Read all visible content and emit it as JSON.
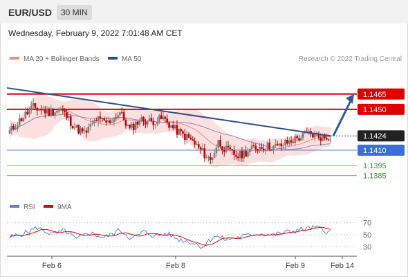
{
  "header": {
    "symbol": "EUR/USD",
    "timeframe": "30 MIN"
  },
  "date_line": "Wednesday, February 9, 2022 7:01:48 AM CET",
  "legend": [
    {
      "label": "MA 20 + Bollinger Bands",
      "color": "#f28b82"
    },
    {
      "label": "MA 50",
      "color": "#2c4e8a"
    }
  ],
  "credit": "Research © 2022 Trading Central",
  "rsi_legend": [
    {
      "label": "RSI",
      "color": "#5b7fd6"
    },
    {
      "label": "9MA",
      "color": "#e00000"
    }
  ],
  "colors": {
    "up": "#7d7d7d",
    "down": "#c00000",
    "resistance": "#e00000",
    "pivot": "#3a6fd8",
    "support": "#6ab86a",
    "trendline": "#2c4e8a",
    "band_fill": "#fbd3d3",
    "arrow": "#2c5aa0"
  },
  "chart_data": [
    {
      "type": "candlestick",
      "x_ticks": [
        "Feb 6",
        "Feb 8",
        "Feb 9",
        "Feb 14"
      ],
      "ylim": [
        1.1378,
        1.1492
      ],
      "levels": [
        {
          "value": 1.1465,
          "label": "1.1465",
          "kind": "resistance"
        },
        {
          "value": 1.145,
          "label": "1.1450",
          "kind": "resistance"
        },
        {
          "value": 1.1424,
          "label": "1.1424",
          "kind": "last_price"
        },
        {
          "value": 1.141,
          "label": "1.1410",
          "kind": "pivot"
        },
        {
          "value": 1.1395,
          "label": "1.1395",
          "kind": "support"
        },
        {
          "value": 1.1385,
          "label": "1.1385",
          "kind": "support"
        }
      ],
      "trendline": {
        "from": 1.1471,
        "to": 1.1424
      },
      "forecast_arrow": {
        "from": 1.1424,
        "to": 1.1465
      },
      "waypoints": [
        [
          0,
          1.1428
        ],
        [
          6,
          1.1441
        ],
        [
          12,
          1.1452
        ],
        [
          20,
          1.1447
        ],
        [
          26,
          1.145
        ],
        [
          33,
          1.1433
        ],
        [
          38,
          1.1426
        ],
        [
          44,
          1.144
        ],
        [
          50,
          1.1437
        ],
        [
          56,
          1.1447
        ],
        [
          61,
          1.143
        ],
        [
          66,
          1.144
        ],
        [
          72,
          1.1438
        ],
        [
          78,
          1.1441
        ],
        [
          84,
          1.143
        ],
        [
          92,
          1.142
        ],
        [
          98,
          1.1408
        ],
        [
          102,
          1.14
        ],
        [
          106,
          1.1418
        ],
        [
          110,
          1.141
        ],
        [
          116,
          1.1404
        ],
        [
          124,
          1.1412
        ],
        [
          130,
          1.1414
        ],
        [
          136,
          1.1413
        ],
        [
          144,
          1.142
        ],
        [
          152,
          1.1426
        ],
        [
          160,
          1.1422
        ],
        [
          163,
          1.1424
        ]
      ]
    },
    {
      "type": "line",
      "title": "RSI",
      "y_ticks": [
        70,
        50,
        30
      ],
      "ylim": [
        20,
        80
      ],
      "rsi_waypoints": [
        [
          0,
          46
        ],
        [
          8,
          53
        ],
        [
          14,
          62
        ],
        [
          22,
          50
        ],
        [
          28,
          57
        ],
        [
          34,
          42
        ],
        [
          40,
          54
        ],
        [
          48,
          45
        ],
        [
          56,
          58
        ],
        [
          62,
          43
        ],
        [
          68,
          55
        ],
        [
          74,
          48
        ],
        [
          80,
          52
        ],
        [
          86,
          42
        ],
        [
          92,
          38
        ],
        [
          98,
          30
        ],
        [
          104,
          48
        ],
        [
          110,
          42
        ],
        [
          118,
          47
        ],
        [
          126,
          52
        ],
        [
          134,
          50
        ],
        [
          142,
          55
        ],
        [
          150,
          60
        ],
        [
          156,
          62
        ],
        [
          163,
          54
        ]
      ]
    }
  ]
}
